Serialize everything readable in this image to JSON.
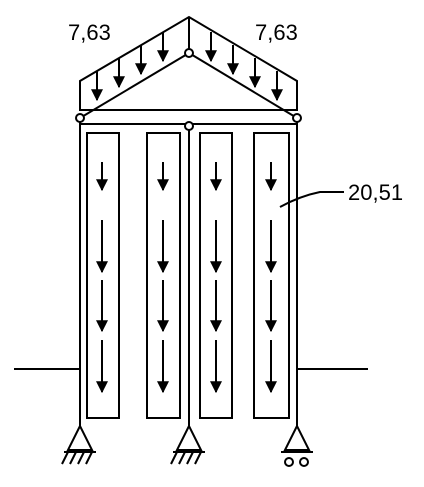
{
  "diagram": {
    "roof_load_left": "7,63",
    "roof_load_right": "7,63",
    "wall_load": "20,51"
  }
}
